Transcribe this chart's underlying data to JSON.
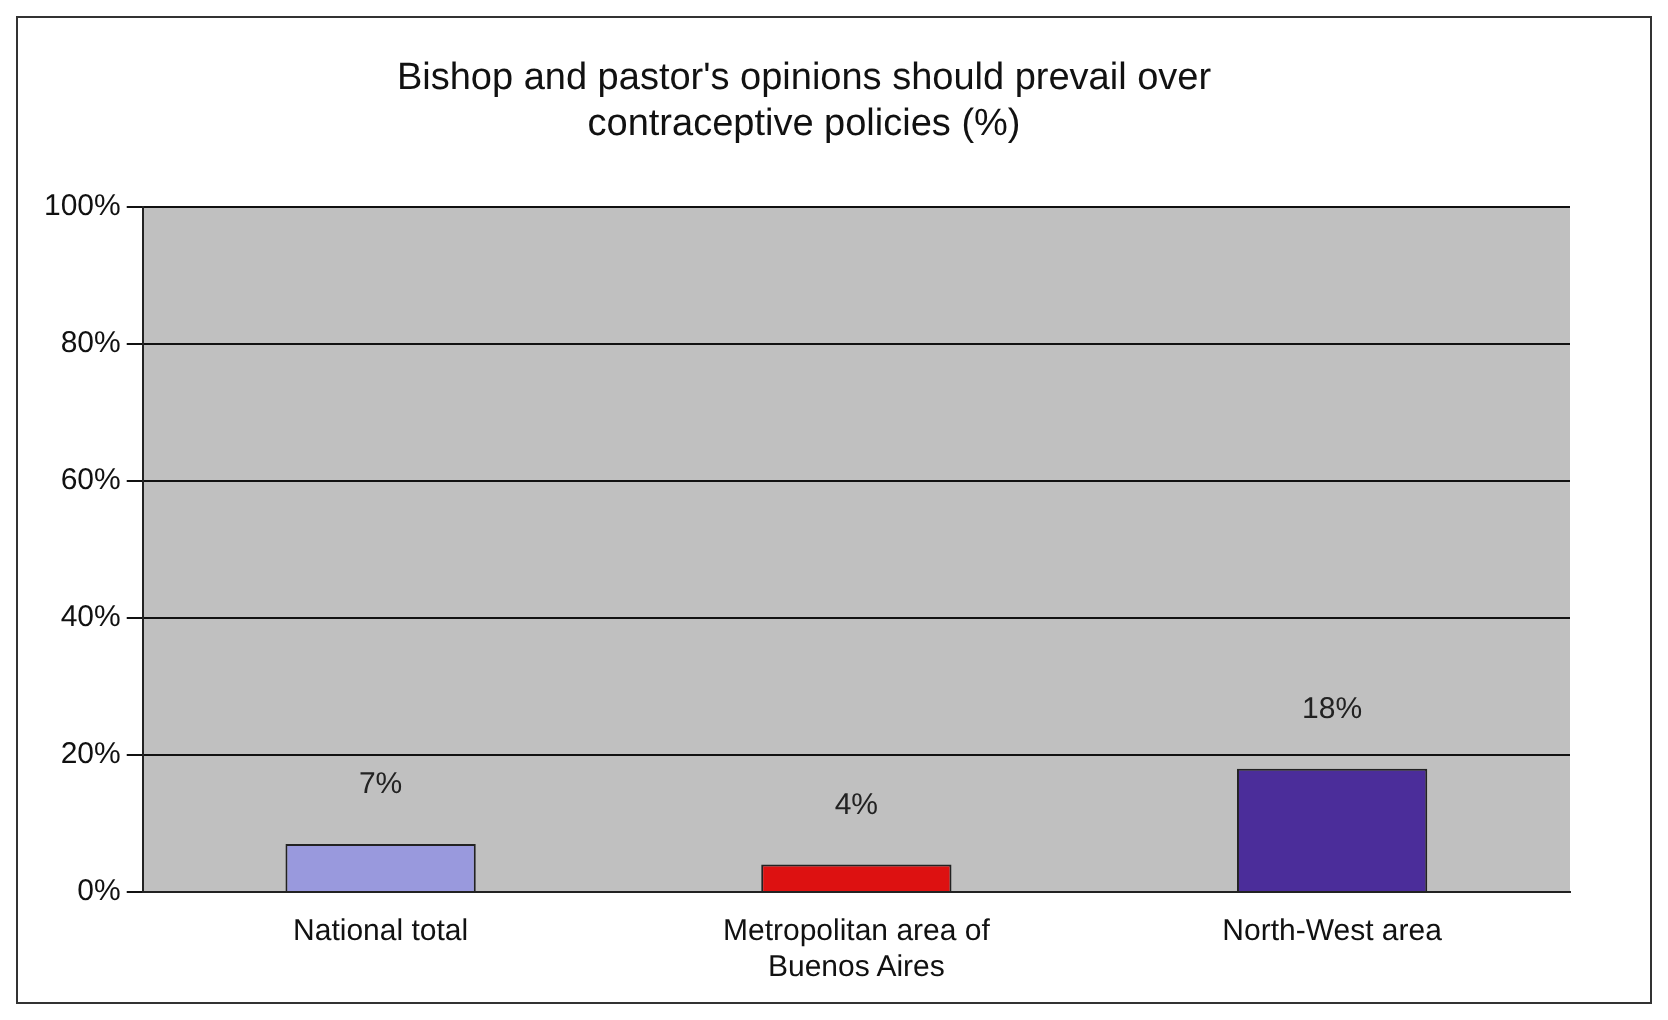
{
  "chart_data": {
    "type": "bar",
    "title": "Bishop and pastor's opinions should prevail over contraceptive policies (%)",
    "categories": [
      "National total",
      "Metropolitan area of Buenos Aires",
      "North-West area"
    ],
    "values": [
      7,
      4,
      18
    ],
    "colors": [
      "#9999dd",
      "#dd1111",
      "#4b2d9a"
    ],
    "value_labels": [
      "7%",
      "4%",
      "18%"
    ],
    "ylim": [
      0,
      100
    ],
    "yticks": [
      {
        "value": 0,
        "label": "0%"
      },
      {
        "value": 20,
        "label": "20%"
      },
      {
        "value": 40,
        "label": "40%"
      },
      {
        "value": 60,
        "label": "60%"
      },
      {
        "value": 80,
        "label": "80%"
      },
      {
        "value": 100,
        "label": "100%"
      }
    ],
    "grid": "y",
    "legend": false
  }
}
